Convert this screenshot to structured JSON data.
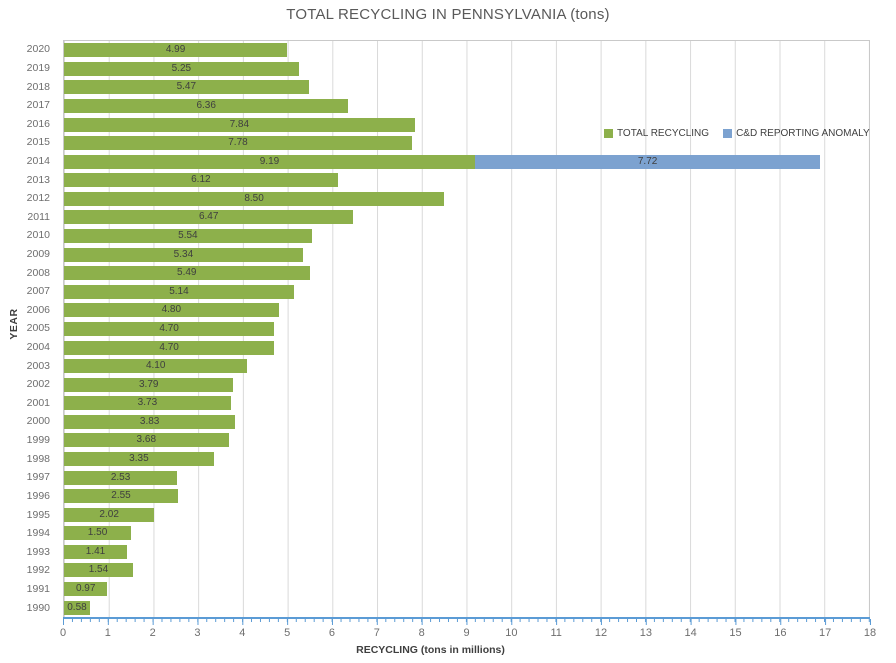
{
  "title": "TOTAL RECYCLING IN PENNSYLVANIA (tons)",
  "legend": [
    {
      "label": "TOTAL RECYCLING",
      "color": "#8DB04B"
    },
    {
      "label": "C&D REPORTING ANOMALY",
      "color": "#7CA2D0"
    }
  ],
  "axes": {
    "x_label": "RECYCLING (tons in millions)",
    "y_label": "YEAR",
    "x_ticks": [
      "0",
      "1",
      "2",
      "3",
      "4",
      "5",
      "6",
      "7",
      "8",
      "9",
      "10",
      "11",
      "12",
      "13",
      "14",
      "15",
      "16",
      "17",
      "18"
    ]
  },
  "colors": {
    "axis_line": "#5B9BD5",
    "gridline": "#D9D9D9",
    "plot_border": "#C9C9C9",
    "title_text": "#595959",
    "tick_text": "#6E6E6E",
    "value_text": "#3F3F3F"
  },
  "chart_data": {
    "type": "bar",
    "orientation": "horizontal",
    "stacked": true,
    "title": "TOTAL RECYCLING IN PENNSYLVANIA (tons)",
    "xlabel": "RECYCLING (tons in millions)",
    "ylabel": "YEAR",
    "xlim": [
      0,
      18
    ],
    "grid": "vertical-major",
    "legend_position": "inside-top-right",
    "categories": [
      "2020",
      "2019",
      "2018",
      "2017",
      "2016",
      "2015",
      "2014",
      "2013",
      "2012",
      "2011",
      "2010",
      "2009",
      "2008",
      "2007",
      "2006",
      "2005",
      "2004",
      "2003",
      "2002",
      "2001",
      "2000",
      "1999",
      "1998",
      "1997",
      "1996",
      "1995",
      "1994",
      "1993",
      "1992",
      "1991",
      "1990"
    ],
    "series": [
      {
        "name": "TOTAL RECYCLING",
        "color": "#8DB04B",
        "values": [
          4.99,
          5.25,
          5.47,
          6.36,
          7.84,
          7.78,
          9.19,
          6.12,
          8.5,
          6.47,
          5.54,
          5.34,
          5.49,
          5.14,
          4.8,
          4.7,
          4.7,
          4.1,
          3.79,
          3.73,
          3.83,
          3.68,
          3.35,
          2.53,
          2.55,
          2.02,
          1.5,
          1.41,
          1.54,
          0.97,
          0.58
        ],
        "value_labels": [
          "4.99",
          "5.25",
          "5.47",
          "6.36",
          "7.84",
          "7.78",
          "9.19",
          "6.12",
          "8.50",
          "6.47",
          "5.54",
          "5.34",
          "5.49",
          "5.14",
          "4.80",
          "4.70",
          "4.70",
          "4.10",
          "3.79",
          "3.73",
          "3.83",
          "3.68",
          "3.35",
          "2.53",
          "2.55",
          "2.02",
          "1.50",
          "1.41",
          "1.54",
          "0.97",
          "0.58"
        ]
      },
      {
        "name": "C&D REPORTING ANOMALY",
        "color": "#7CA2D0",
        "values": [
          0,
          0,
          0,
          0,
          0,
          0,
          7.72,
          0,
          0,
          0,
          0,
          0,
          0,
          0,
          0,
          0,
          0,
          0,
          0,
          0,
          0,
          0,
          0,
          0,
          0,
          0,
          0,
          0,
          0,
          0,
          0
        ],
        "value_labels": [
          "",
          "",
          "",
          "",
          "",
          "",
          "7.72",
          "",
          "",
          "",
          "",
          "",
          "",
          "",
          "",
          "",
          "",
          "",
          "",
          "",
          "",
          "",
          "",
          "",
          "",
          "",
          "",
          "",
          "",
          "",
          ""
        ]
      }
    ]
  }
}
